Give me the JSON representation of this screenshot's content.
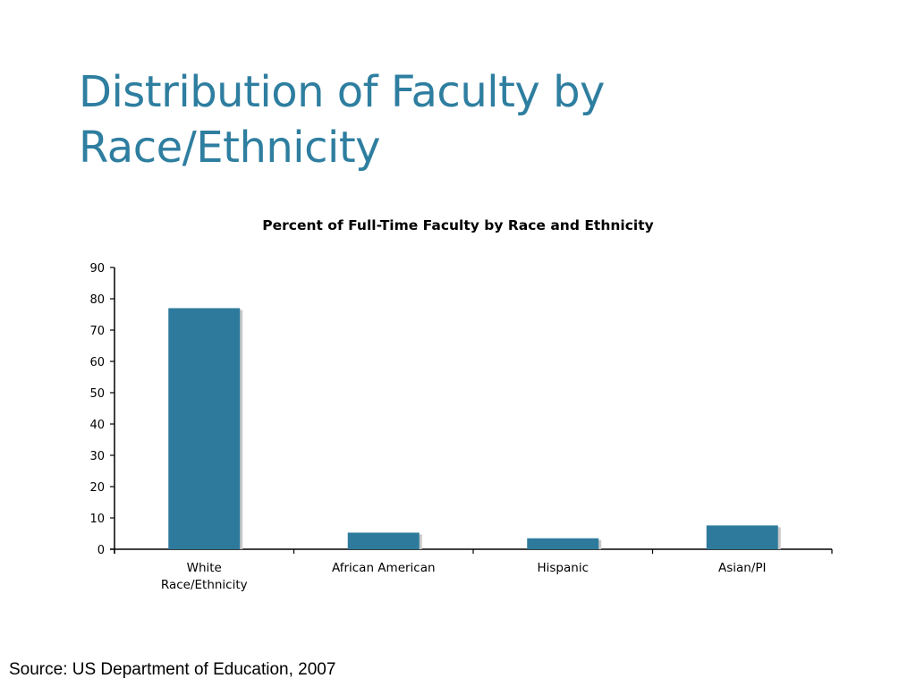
{
  "slide": {
    "title_line1": "Distribution of Faculty by",
    "title_line2": "Race/Ethnicity",
    "source": "Source: US Department of Education, 2007"
  },
  "colors": {
    "title": "#2e7ea0",
    "bar": "#2e7a9c",
    "axis": "#000000"
  },
  "chart_data": {
    "type": "bar",
    "title": "Percent of Full-Time Faculty by Race and Ethnicity",
    "categories": [
      [
        "White",
        "Race/Ethnicity"
      ],
      [
        "African American"
      ],
      [
        "Hispanic"
      ],
      [
        "Asian/PI"
      ]
    ],
    "values": [
      77,
      5.3,
      3.5,
      7.6
    ],
    "ylim": [
      0,
      90
    ],
    "yticks": [
      0,
      10,
      20,
      30,
      40,
      50,
      60,
      70,
      80,
      90
    ],
    "xlabel": "",
    "ylabel": "",
    "grid": false
  }
}
